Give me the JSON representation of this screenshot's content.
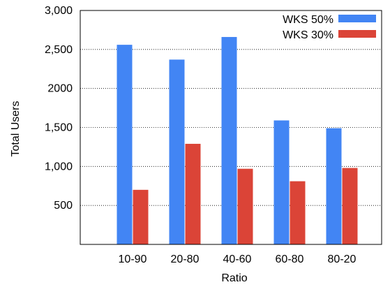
{
  "chart_data": {
    "type": "bar",
    "title": "",
    "xlabel": "Ratio",
    "ylabel": "Total Users",
    "categories": [
      "10-90",
      "20-80",
      "40-60",
      "60-80",
      "80-20"
    ],
    "series": [
      {
        "name": "WKS 50%",
        "color": "#4285f4",
        "values": [
          2560,
          2370,
          2660,
          1590,
          1490
        ]
      },
      {
        "name": "WKS 30%",
        "color": "#db4437",
        "values": [
          700,
          1290,
          970,
          810,
          980
        ]
      }
    ],
    "ylim": [
      0,
      3000
    ],
    "yticks": [
      {
        "value": 500,
        "label": "500"
      },
      {
        "value": 1000,
        "label": "1,000"
      },
      {
        "value": 1500,
        "label": "1,500"
      },
      {
        "value": 2000,
        "label": "2000"
      },
      {
        "value": 2500,
        "label": "2,500"
      },
      {
        "value": 3000,
        "label": "3,000"
      }
    ],
    "grid": "horizontal-dotted",
    "legend_position": "top-right"
  }
}
